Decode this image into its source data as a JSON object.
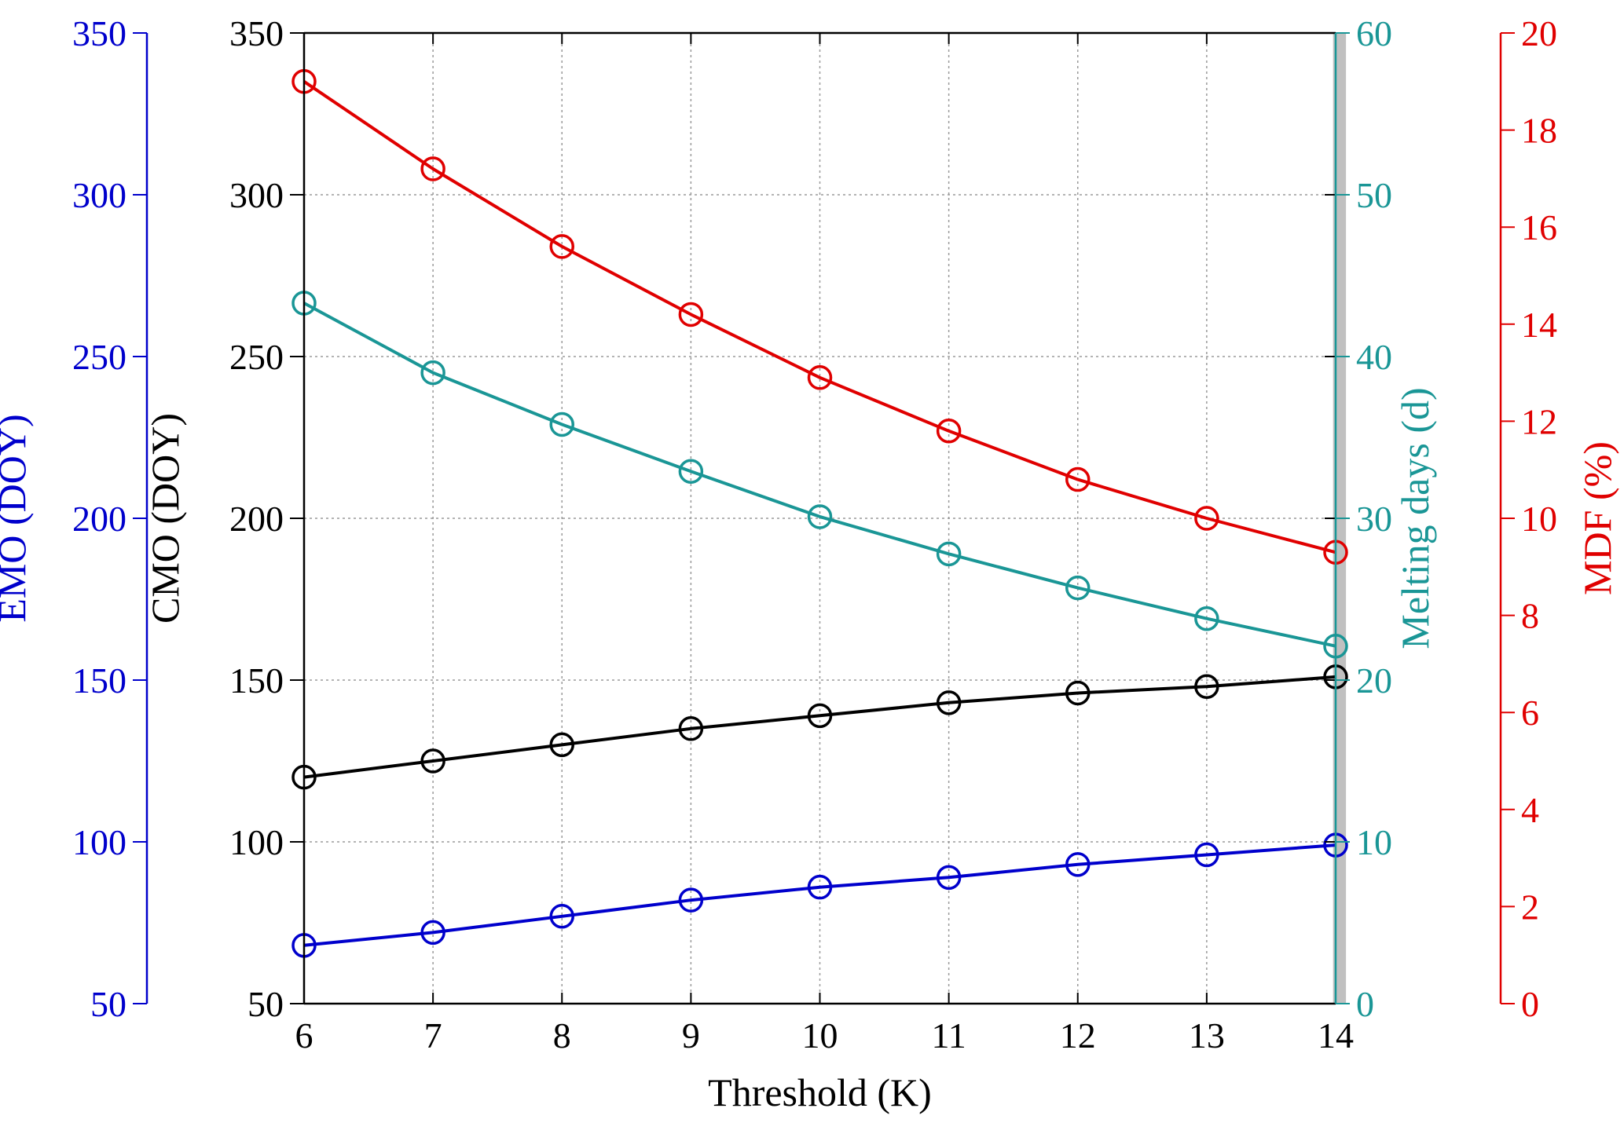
{
  "chart_data": {
    "type": "line",
    "xlabel": "Threshold (K)",
    "x": [
      6,
      7,
      8,
      9,
      10,
      11,
      12,
      13,
      14
    ],
    "xlim": [
      6,
      14
    ],
    "xticks": [
      6,
      7,
      8,
      9,
      10,
      11,
      12,
      13,
      14
    ],
    "grid": true,
    "shaded_band": {
      "x_from": 13.98,
      "x_to": 14.08,
      "color": "#c0c0c0"
    },
    "axes": [
      {
        "id": "emo",
        "label": "EMO (DOY)",
        "side": "left-outer",
        "color": "#0000cc",
        "ylim": [
          50,
          350
        ],
        "ticks": [
          50,
          100,
          150,
          200,
          250,
          300,
          350
        ]
      },
      {
        "id": "cmo",
        "label": "CMO (DOY)",
        "side": "left",
        "color": "#000000",
        "ylim": [
          50,
          350
        ],
        "ticks": [
          50,
          100,
          150,
          200,
          250,
          300,
          350
        ]
      },
      {
        "id": "melt",
        "label": "Melting days (d)",
        "side": "right",
        "color": "#1a9696",
        "ylim": [
          0,
          60
        ],
        "ticks": [
          0,
          10,
          20,
          30,
          40,
          50,
          60
        ]
      },
      {
        "id": "mdf",
        "label": "MDF (%)",
        "side": "right-outer",
        "color": "#e00000",
        "ylim": [
          0,
          20
        ],
        "ticks": [
          0,
          2,
          4,
          6,
          8,
          10,
          12,
          14,
          16,
          18,
          20
        ]
      }
    ],
    "series": [
      {
        "axis": "mdf",
        "color": "#e00000",
        "values": [
          19.0,
          17.2,
          15.6,
          14.2,
          12.9,
          11.8,
          10.8,
          10.0,
          9.3
        ]
      },
      {
        "axis": "melt",
        "color": "#1a9696",
        "values": [
          43.3,
          39.0,
          35.8,
          32.9,
          30.1,
          27.8,
          25.7,
          23.8,
          22.1
        ]
      },
      {
        "axis": "cmo",
        "color": "#000000",
        "values": [
          120,
          125,
          130,
          135,
          139,
          143,
          146,
          148,
          151
        ]
      },
      {
        "axis": "emo",
        "color": "#0000cc",
        "values": [
          68,
          72,
          77,
          82,
          86,
          89,
          93,
          96,
          99
        ]
      }
    ]
  }
}
